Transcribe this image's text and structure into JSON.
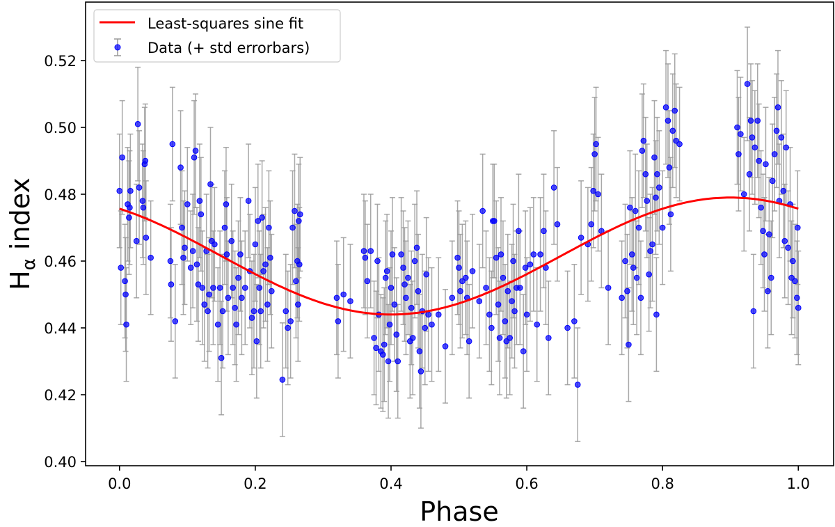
{
  "chart_data": {
    "type": "scatter",
    "title": "",
    "xlabel": "Phase",
    "ylabel_main": "H",
    "ylabel_sub": "α",
    "ylabel_rest": " index",
    "xlim": [
      -0.05,
      1.052
    ],
    "ylim": [
      0.39875,
      0.5375
    ],
    "xticks": [
      "0.0",
      "0.2",
      "0.4",
      "0.6",
      "0.8",
      "1.0"
    ],
    "yticks": [
      "0.40",
      "0.42",
      "0.44",
      "0.46",
      "0.48",
      "0.50",
      "0.52"
    ],
    "grid": false,
    "legend_placement": "upper-left",
    "legend": [
      {
        "label": "Least-squares sine fit",
        "kind": "line",
        "color": "#ff0000"
      },
      {
        "label": "Data (+ std errorbars)",
        "kind": "errorbar-point",
        "color": "#0000ff"
      }
    ],
    "fit": {
      "name": "Least-squares sine fit",
      "mean": 0.4615,
      "amplitude": 0.0175,
      "phase_of_max": 0.9,
      "color": "#ff0000"
    },
    "data": {
      "name": "Data (+ std errorbars)",
      "marker_color": "#0000ff",
      "errorbar_color": "#999999",
      "yerr": 0.017,
      "points": [
        [
          0.0,
          0.481
        ],
        [
          0.002,
          0.458
        ],
        [
          0.004,
          0.491
        ],
        [
          0.008,
          0.454
        ],
        [
          0.009,
          0.45
        ],
        [
          0.01,
          0.441
        ],
        [
          0.012,
          0.477
        ],
        [
          0.014,
          0.473
        ],
        [
          0.015,
          0.476
        ],
        [
          0.016,
          0.481
        ],
        [
          0.025,
          0.466
        ],
        [
          0.027,
          0.501
        ],
        [
          0.029,
          0.482
        ],
        [
          0.034,
          0.478
        ],
        [
          0.035,
          0.476
        ],
        [
          0.037,
          0.489
        ],
        [
          0.038,
          0.49
        ],
        [
          0.039,
          0.467
        ],
        [
          0.046,
          0.461
        ],
        [
          0.075,
          0.46
        ],
        [
          0.076,
          0.453
        ],
        [
          0.078,
          0.495
        ],
        [
          0.082,
          0.442
        ],
        [
          0.09,
          0.488
        ],
        [
          0.092,
          0.47
        ],
        [
          0.094,
          0.461
        ],
        [
          0.096,
          0.464
        ],
        [
          0.1,
          0.477
        ],
        [
          0.105,
          0.458
        ],
        [
          0.108,
          0.463
        ],
        [
          0.11,
          0.491
        ],
        [
          0.112,
          0.493
        ],
        [
          0.114,
          0.459
        ],
        [
          0.116,
          0.453
        ],
        [
          0.118,
          0.478
        ],
        [
          0.12,
          0.474
        ],
        [
          0.122,
          0.452
        ],
        [
          0.125,
          0.447
        ],
        [
          0.128,
          0.463
        ],
        [
          0.13,
          0.445
        ],
        [
          0.132,
          0.45
        ],
        [
          0.134,
          0.483
        ],
        [
          0.136,
          0.466
        ],
        [
          0.138,
          0.452
        ],
        [
          0.14,
          0.465
        ],
        [
          0.145,
          0.441
        ],
        [
          0.148,
          0.452
        ],
        [
          0.15,
          0.431
        ],
        [
          0.152,
          0.445
        ],
        [
          0.155,
          0.47
        ],
        [
          0.157,
          0.477
        ],
        [
          0.158,
          0.462
        ],
        [
          0.16,
          0.449
        ],
        [
          0.165,
          0.466
        ],
        [
          0.167,
          0.452
        ],
        [
          0.17,
          0.446
        ],
        [
          0.172,
          0.441
        ],
        [
          0.175,
          0.455
        ],
        [
          0.178,
          0.462
        ],
        [
          0.18,
          0.449
        ],
        [
          0.185,
          0.452
        ],
        [
          0.19,
          0.478
        ],
        [
          0.192,
          0.457
        ],
        [
          0.195,
          0.443
        ],
        [
          0.198,
          0.445
        ],
        [
          0.2,
          0.465
        ],
        [
          0.202,
          0.436
        ],
        [
          0.204,
          0.472
        ],
        [
          0.206,
          0.452
        ],
        [
          0.208,
          0.445
        ],
        [
          0.21,
          0.473
        ],
        [
          0.212,
          0.457
        ],
        [
          0.215,
          0.459
        ],
        [
          0.218,
          0.447
        ],
        [
          0.22,
          0.47
        ],
        [
          0.222,
          0.461
        ],
        [
          0.224,
          0.451
        ],
        [
          0.24,
          0.4245
        ],
        [
          0.245,
          0.445
        ],
        [
          0.248,
          0.44
        ],
        [
          0.252,
          0.442
        ],
        [
          0.255,
          0.47
        ],
        [
          0.258,
          0.475
        ],
        [
          0.26,
          0.454
        ],
        [
          0.262,
          0.46
        ],
        [
          0.263,
          0.447
        ],
        [
          0.264,
          0.472
        ],
        [
          0.265,
          0.459
        ],
        [
          0.266,
          0.474
        ],
        [
          0.32,
          0.449
        ],
        [
          0.322,
          0.442
        ],
        [
          0.33,
          0.45
        ],
        [
          0.34,
          0.448
        ],
        [
          0.36,
          0.463
        ],
        [
          0.362,
          0.461
        ],
        [
          0.365,
          0.454
        ],
        [
          0.37,
          0.463
        ],
        [
          0.375,
          0.437
        ],
        [
          0.378,
          0.434
        ],
        [
          0.38,
          0.46
        ],
        [
          0.382,
          0.444
        ],
        [
          0.385,
          0.433
        ],
        [
          0.388,
          0.432
        ],
        [
          0.39,
          0.435
        ],
        [
          0.392,
          0.455
        ],
        [
          0.394,
          0.457
        ],
        [
          0.396,
          0.43
        ],
        [
          0.398,
          0.441
        ],
        [
          0.4,
          0.452
        ],
        [
          0.402,
          0.462
        ],
        [
          0.405,
          0.447
        ],
        [
          0.408,
          0.438
        ],
        [
          0.41,
          0.43
        ],
        [
          0.415,
          0.462
        ],
        [
          0.418,
          0.458
        ],
        [
          0.42,
          0.453
        ],
        [
          0.422,
          0.449
        ],
        [
          0.425,
          0.455
        ],
        [
          0.428,
          0.436
        ],
        [
          0.43,
          0.446
        ],
        [
          0.432,
          0.437
        ],
        [
          0.435,
          0.46
        ],
        [
          0.438,
          0.464
        ],
        [
          0.44,
          0.451
        ],
        [
          0.442,
          0.433
        ],
        [
          0.444,
          0.427
        ],
        [
          0.446,
          0.445
        ],
        [
          0.45,
          0.44
        ],
        [
          0.452,
          0.456
        ],
        [
          0.455,
          0.444
        ],
        [
          0.46,
          0.441
        ],
        [
          0.47,
          0.444
        ],
        [
          0.48,
          0.4345
        ],
        [
          0.49,
          0.449
        ],
        [
          0.498,
          0.461
        ],
        [
          0.5,
          0.458
        ],
        [
          0.502,
          0.451
        ],
        [
          0.505,
          0.454
        ],
        [
          0.51,
          0.455
        ],
        [
          0.512,
          0.449
        ],
        [
          0.515,
          0.436
        ],
        [
          0.52,
          0.457
        ],
        [
          0.53,
          0.448
        ],
        [
          0.535,
          0.475
        ],
        [
          0.54,
          0.452
        ],
        [
          0.545,
          0.444
        ],
        [
          0.548,
          0.44
        ],
        [
          0.55,
          0.472
        ],
        [
          0.552,
          0.472
        ],
        [
          0.555,
          0.461
        ],
        [
          0.558,
          0.447
        ],
        [
          0.56,
          0.437
        ],
        [
          0.562,
          0.462
        ],
        [
          0.565,
          0.455
        ],
        [
          0.568,
          0.442
        ],
        [
          0.57,
          0.436
        ],
        [
          0.572,
          0.451
        ],
        [
          0.575,
          0.437
        ],
        [
          0.578,
          0.448
        ],
        [
          0.58,
          0.46
        ],
        [
          0.582,
          0.445
        ],
        [
          0.585,
          0.452
        ],
        [
          0.588,
          0.469
        ],
        [
          0.59,
          0.452
        ],
        [
          0.595,
          0.433
        ],
        [
          0.598,
          0.458
        ],
        [
          0.6,
          0.444
        ],
        [
          0.605,
          0.459
        ],
        [
          0.61,
          0.462
        ],
        [
          0.615,
          0.441
        ],
        [
          0.62,
          0.462
        ],
        [
          0.625,
          0.469
        ],
        [
          0.628,
          0.458
        ],
        [
          0.632,
          0.437
        ],
        [
          0.64,
          0.482
        ],
        [
          0.645,
          0.471
        ],
        [
          0.66,
          0.44
        ],
        [
          0.67,
          0.442
        ],
        [
          0.675,
          0.423
        ],
        [
          0.68,
          0.467
        ],
        [
          0.69,
          0.465
        ],
        [
          0.695,
          0.471
        ],
        [
          0.698,
          0.481
        ],
        [
          0.7,
          0.492
        ],
        [
          0.702,
          0.495
        ],
        [
          0.705,
          0.48
        ],
        [
          0.71,
          0.469
        ],
        [
          0.72,
          0.452
        ],
        [
          0.74,
          0.449
        ],
        [
          0.745,
          0.46
        ],
        [
          0.748,
          0.451
        ],
        [
          0.75,
          0.435
        ],
        [
          0.752,
          0.476
        ],
        [
          0.755,
          0.462
        ],
        [
          0.757,
          0.458
        ],
        [
          0.76,
          0.475
        ],
        [
          0.762,
          0.455
        ],
        [
          0.765,
          0.47
        ],
        [
          0.768,
          0.449
        ],
        [
          0.77,
          0.493
        ],
        [
          0.772,
          0.496
        ],
        [
          0.775,
          0.486
        ],
        [
          0.777,
          0.478
        ],
        [
          0.78,
          0.456
        ],
        [
          0.782,
          0.463
        ],
        [
          0.785,
          0.465
        ],
        [
          0.788,
          0.491
        ],
        [
          0.79,
          0.479
        ],
        [
          0.791,
          0.444
        ],
        [
          0.792,
          0.486
        ],
        [
          0.795,
          0.482
        ],
        [
          0.8,
          0.47
        ],
        [
          0.805,
          0.506
        ],
        [
          0.808,
          0.502
        ],
        [
          0.81,
          0.488
        ],
        [
          0.812,
          0.474
        ],
        [
          0.815,
          0.499
        ],
        [
          0.818,
          0.505
        ],
        [
          0.82,
          0.496
        ],
        [
          0.825,
          0.495
        ],
        [
          0.91,
          0.5
        ],
        [
          0.912,
          0.492
        ],
        [
          0.915,
          0.498
        ],
        [
          0.92,
          0.48
        ],
        [
          0.925,
          0.513
        ],
        [
          0.928,
          0.486
        ],
        [
          0.93,
          0.502
        ],
        [
          0.932,
          0.497
        ],
        [
          0.934,
          0.445
        ],
        [
          0.936,
          0.494
        ],
        [
          0.94,
          0.502
        ],
        [
          0.942,
          0.49
        ],
        [
          0.945,
          0.476
        ],
        [
          0.948,
          0.469
        ],
        [
          0.95,
          0.462
        ],
        [
          0.952,
          0.489
        ],
        [
          0.955,
          0.451
        ],
        [
          0.957,
          0.468
        ],
        [
          0.96,
          0.455
        ],
        [
          0.962,
          0.484
        ],
        [
          0.965,
          0.492
        ],
        [
          0.968,
          0.499
        ],
        [
          0.97,
          0.506
        ],
        [
          0.972,
          0.478
        ],
        [
          0.975,
          0.497
        ],
        [
          0.978,
          0.481
        ],
        [
          0.98,
          0.466
        ],
        [
          0.982,
          0.494
        ],
        [
          0.985,
          0.464
        ],
        [
          0.988,
          0.477
        ],
        [
          0.99,
          0.455
        ],
        [
          0.992,
          0.46
        ],
        [
          0.995,
          0.454
        ],
        [
          0.998,
          0.449
        ],
        [
          0.999,
          0.47
        ],
        [
          1.0,
          0.446
        ]
      ]
    }
  }
}
